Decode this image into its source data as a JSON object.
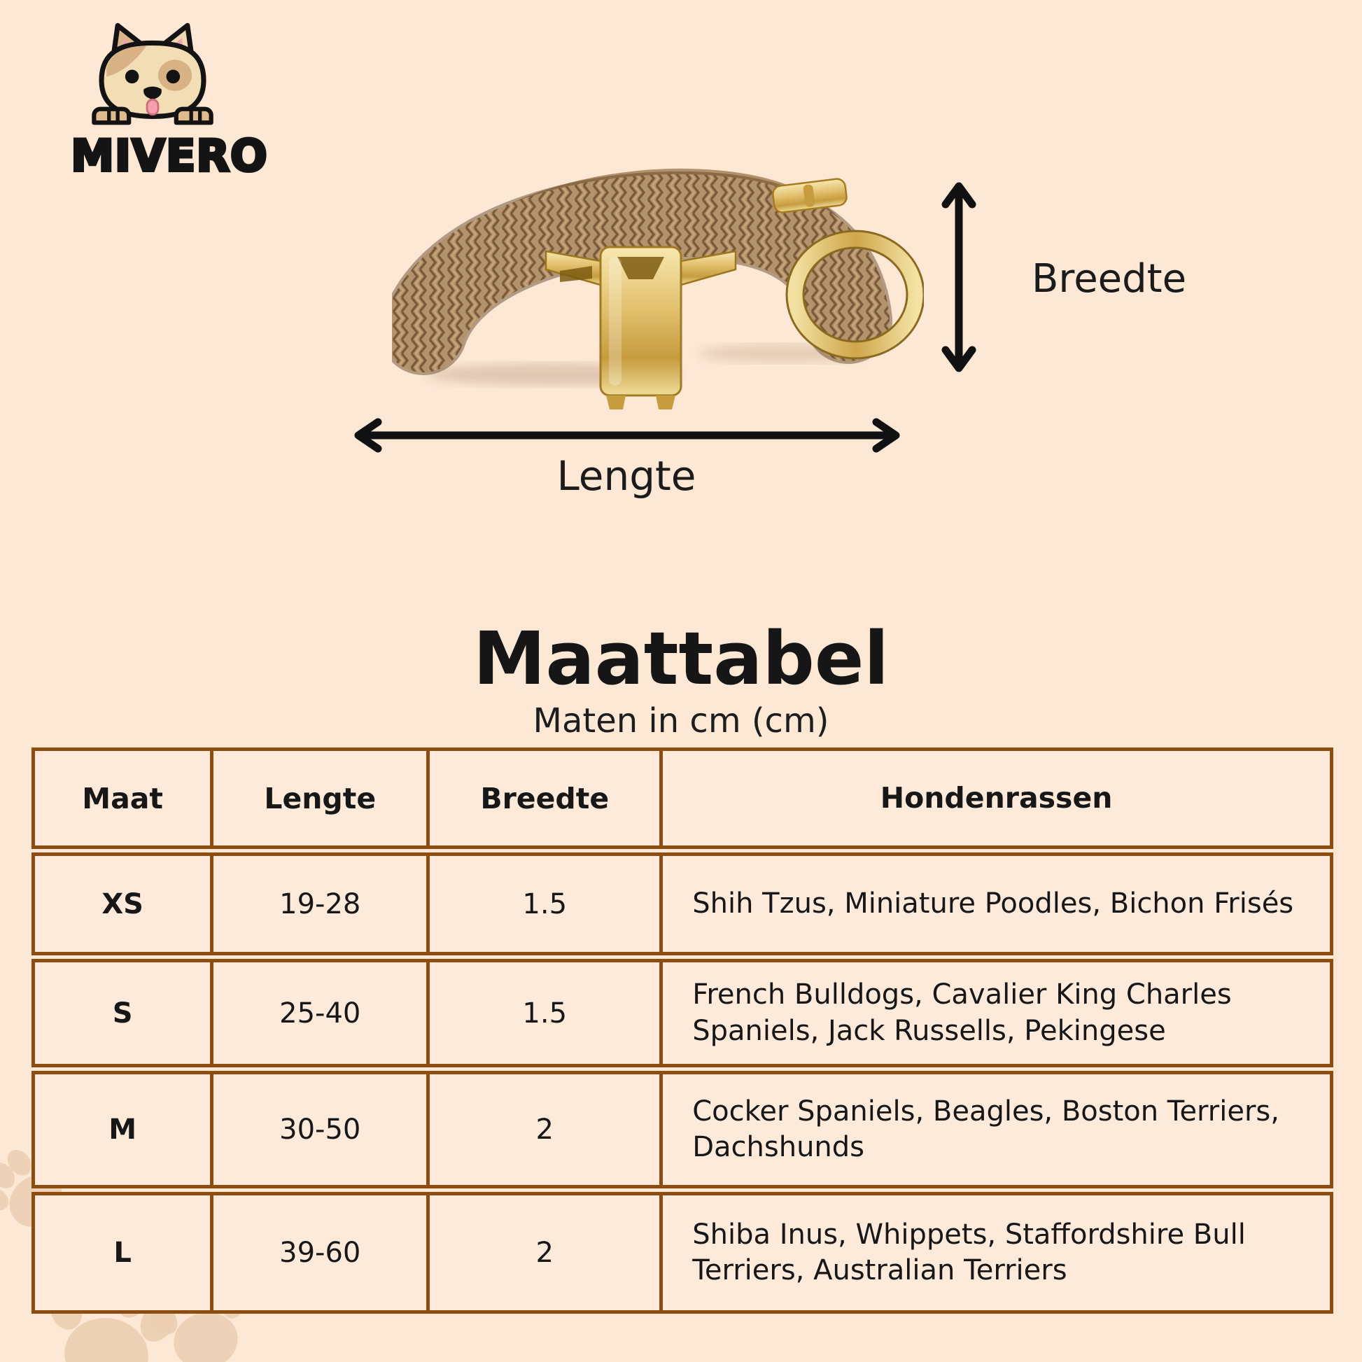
{
  "page": {
    "background": "#fce8d5",
    "border_color": "#8e4d10"
  },
  "logo": {
    "brand": "MIVERO"
  },
  "figure": {
    "width_label": "Breedte",
    "length_label": "Lengte"
  },
  "title": {
    "heading": "Maattabel",
    "subtitle": "Maten in cm (cm)"
  },
  "table": {
    "headers": [
      "Maat",
      "Lengte",
      "Breedte",
      "Hondenrassen"
    ],
    "rows": [
      {
        "maat": "XS",
        "lengte": "19-28",
        "breedte": "1.5",
        "hondenrassen": "Shih Tzus, Miniature Poodles, Bichon Frisés"
      },
      {
        "maat": "S",
        "lengte": "25-40",
        "breedte": "1.5",
        "hondenrassen": "French Bulldogs, Cavalier King Charles Spaniels, Jack Russells, Pekingese"
      },
      {
        "maat": "M",
        "lengte": "30-50",
        "breedte": "2",
        "hondenrassen": "Cocker Spaniels, Beagles, Boston Terriers, Dachshunds"
      },
      {
        "maat": "L",
        "lengte": "39-60",
        "breedte": "2",
        "hondenrassen": "Shiba Inus, Whippets, Staffordshire Bull Terriers, Australian Terriers"
      }
    ]
  }
}
